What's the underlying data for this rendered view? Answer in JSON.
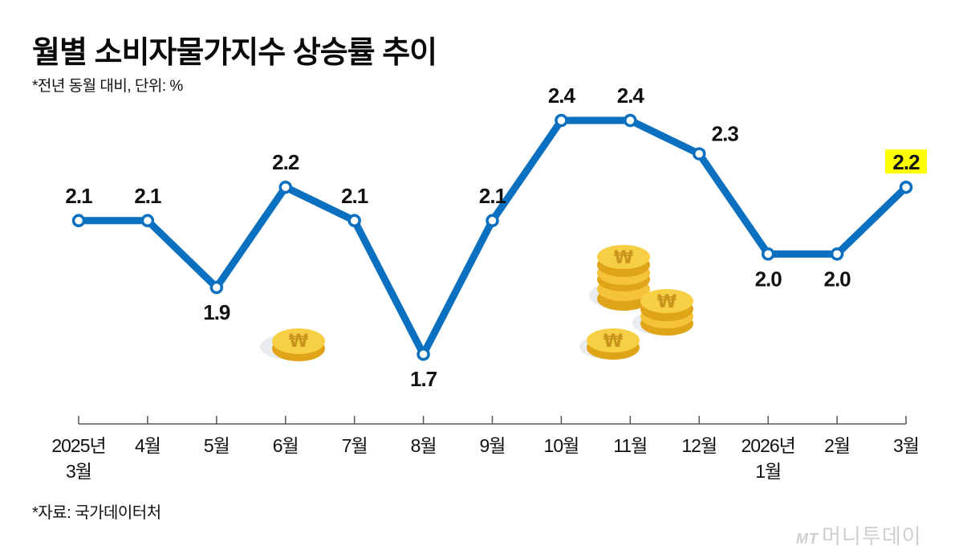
{
  "header": {
    "title": "월별 소비자물가지수 상승률 추이",
    "subtitle": "*전년 동월 대비, 단위: %"
  },
  "footer": {
    "source": "*자료: 국가데이터처",
    "logo_mt": "MT",
    "logo_text": "머니투데이"
  },
  "colors": {
    "line": "#0a70bf",
    "highlight": "#ffff00",
    "coin": "#f5c842"
  },
  "chart_data": {
    "type": "line",
    "title": "월별 소비자물가지수 상승률 추이",
    "subtitle": "*전년 동월 대비, 단위: %",
    "xlabel": "",
    "ylabel": "%",
    "categories": [
      "2025년 3월",
      "4월",
      "5월",
      "6월",
      "7월",
      "8월",
      "9월",
      "10월",
      "11월",
      "12월",
      "2026년 1월",
      "2월",
      "3월"
    ],
    "category_lines": [
      [
        "2025년",
        "3월"
      ],
      [
        "4월"
      ],
      [
        "5월"
      ],
      [
        "6월"
      ],
      [
        "7월"
      ],
      [
        "8월"
      ],
      [
        "9월"
      ],
      [
        "10월"
      ],
      [
        "11월"
      ],
      [
        "12월"
      ],
      [
        "2026년",
        "1월"
      ],
      [
        "2월"
      ],
      [
        "3월"
      ]
    ],
    "series": [
      {
        "name": "소비자물가지수 상승률",
        "values": [
          2.1,
          2.1,
          1.9,
          2.2,
          2.1,
          1.7,
          2.1,
          2.4,
          2.4,
          2.3,
          2.0,
          2.0,
          2.2
        ]
      }
    ],
    "labels": [
      "2.1",
      "2.1",
      "1.9",
      "2.2",
      "2.1",
      "1.7",
      "2.1",
      "2.4",
      "2.4",
      "2.3",
      "2.0",
      "2.0",
      "2.2"
    ],
    "label_positions": [
      "above",
      "above",
      "below",
      "above",
      "above",
      "below",
      "above",
      "above",
      "above",
      "above-right",
      "below",
      "below",
      "above"
    ],
    "highlight_index": 12,
    "grid": false,
    "legend": null,
    "source": "*자료: 국가데이터처"
  }
}
